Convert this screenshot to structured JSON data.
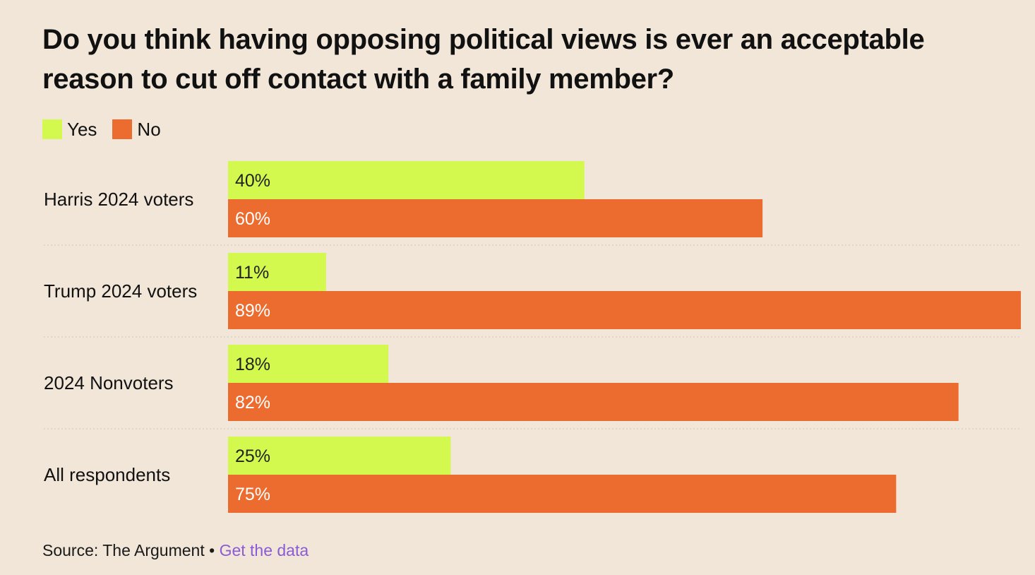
{
  "title": "Do you think having opposing political views is ever an acceptable reason to cut off contact with a family member?",
  "colors": {
    "background": "#f1e6d8",
    "yes": "#d3f84e",
    "no": "#ec6c30",
    "link": "#8a5cd6",
    "divider": "#dcd0c1"
  },
  "chart_data": {
    "type": "bar",
    "orientation": "horizontal",
    "categories": [
      "Harris 2024 voters",
      "Trump 2024 voters",
      "2024 Nonvoters",
      "All respondents"
    ],
    "series": [
      {
        "name": "Yes",
        "values": [
          40,
          11,
          18,
          25
        ]
      },
      {
        "name": "No",
        "values": [
          60,
          89,
          82,
          75
        ]
      }
    ],
    "value_suffix": "%",
    "xlim": [
      0,
      89
    ],
    "legend_position": "top-left",
    "grid": false
  },
  "footer": {
    "source_label": "Source: The Argument",
    "separator": "•",
    "link_label": "Get the data"
  }
}
